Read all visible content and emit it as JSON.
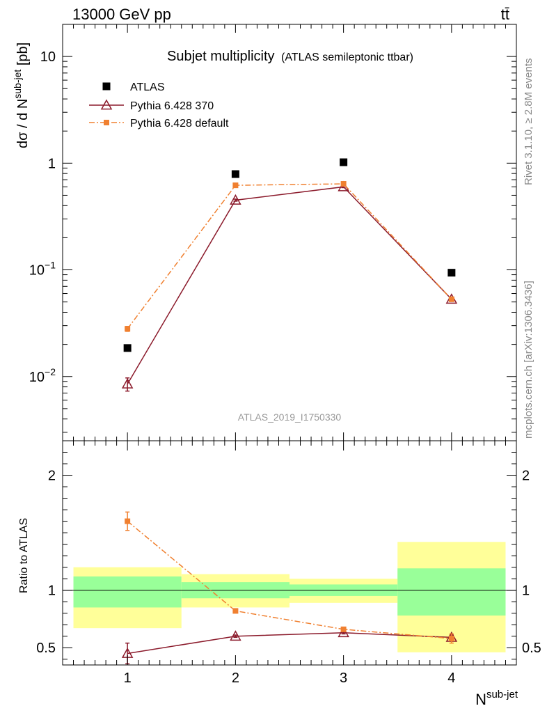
{
  "header": {
    "energy_label": "13000 GeV pp",
    "process_label": "tt̄"
  },
  "side_labels": {
    "rivet": "Rivet 3.1.10, ≥ 2.8M events",
    "mcplots": "mcplots.cern.ch [arXiv:1306.3436]"
  },
  "chart_data": [
    {
      "type": "scatter",
      "panel": "main",
      "title": "Subjet multiplicity",
      "subtitle": "(ATLAS semileptonic ttbar)",
      "watermark": "ATLAS_2019_I1750330",
      "ylabel": {
        "prefix": "dσ / d N",
        "sup": "sub-jet",
        "suffix": " [pb]"
      },
      "yscale": "log",
      "ylim": [
        0.0025,
        20
      ],
      "xlim": [
        0.4,
        4.6
      ],
      "ytick_labels": [
        {
          "base": "10",
          "exp": "−2",
          "value": 0.01
        },
        {
          "base": "10",
          "exp": "−1",
          "value": 0.1
        },
        {
          "base": "1",
          "exp": "",
          "value": 1
        },
        {
          "base": "10",
          "exp": "",
          "value": 10
        }
      ],
      "legend_position": "top-left",
      "series": [
        {
          "name": "ATLAS",
          "color": "#000000",
          "marker": "square",
          "line": "none",
          "x": [
            1,
            2,
            3,
            4
          ],
          "y": [
            0.0185,
            0.79,
            1.02,
            0.094
          ],
          "yerr": [
            0,
            0,
            0,
            0
          ]
        },
        {
          "name": "Pythia 6.428 370",
          "color": "#8b1a2b",
          "marker": "triangle-open",
          "line": "solid",
          "x": [
            1,
            2,
            3,
            4
          ],
          "y": [
            0.0085,
            0.45,
            0.6,
            0.053
          ],
          "yerr": [
            0.0012,
            0.01,
            0.01,
            0.002
          ]
        },
        {
          "name": "Pythia 6.428 default",
          "color": "#f08030",
          "marker": "square-small",
          "line": "dashdot",
          "x": [
            1,
            2,
            3,
            4
          ],
          "y": [
            0.028,
            0.62,
            0.64,
            0.053
          ],
          "yerr": [
            0.0015,
            0.01,
            0.01,
            0.002
          ]
        }
      ]
    },
    {
      "type": "scatter",
      "panel": "ratio",
      "ylabel": "Ratio to ATLAS",
      "xlabel": {
        "base": "N",
        "sup": "sub-jet"
      },
      "ylim": [
        0.35,
        2.3
      ],
      "xlim": [
        0.4,
        4.6
      ],
      "xtick_labels": [
        "1",
        "2",
        "3",
        "4"
      ],
      "ytick_labels": [
        "0.5",
        "1",
        "2"
      ],
      "ytick_values": [
        0.5,
        1,
        2
      ],
      "reference_line": 1,
      "bands": [
        {
          "x0": 0.5,
          "x1": 1.5,
          "green": [
            0.85,
            1.12
          ],
          "yellow": [
            0.67,
            1.2
          ]
        },
        {
          "x0": 1.5,
          "x1": 2.5,
          "green": [
            0.93,
            1.07
          ],
          "yellow": [
            0.85,
            1.14
          ]
        },
        {
          "x0": 2.5,
          "x1": 3.5,
          "green": [
            0.95,
            1.05
          ],
          "yellow": [
            0.89,
            1.1
          ]
        },
        {
          "x0": 3.5,
          "x1": 4.5,
          "green": [
            0.78,
            1.19
          ],
          "yellow": [
            0.46,
            1.42
          ]
        }
      ],
      "band_colors": {
        "green": "#99ff99",
        "yellow": "#ffff99"
      },
      "series": [
        {
          "name": "Pythia 6.428 370",
          "color": "#8b1a2b",
          "marker": "triangle-open",
          "line": "solid",
          "x": [
            1,
            2,
            3,
            4
          ],
          "y": [
            0.45,
            0.6,
            0.63,
            0.59
          ],
          "yerr": [
            0.09,
            0.01,
            0.01,
            0.02
          ]
        },
        {
          "name": "Pythia 6.428 default",
          "color": "#f08030",
          "marker": "square-small",
          "line": "dashdot",
          "x": [
            1,
            2,
            3,
            4
          ],
          "y": [
            1.6,
            0.82,
            0.66,
            0.58
          ],
          "yerr": [
            0.08,
            0.01,
            0.01,
            0.04
          ]
        }
      ]
    }
  ]
}
